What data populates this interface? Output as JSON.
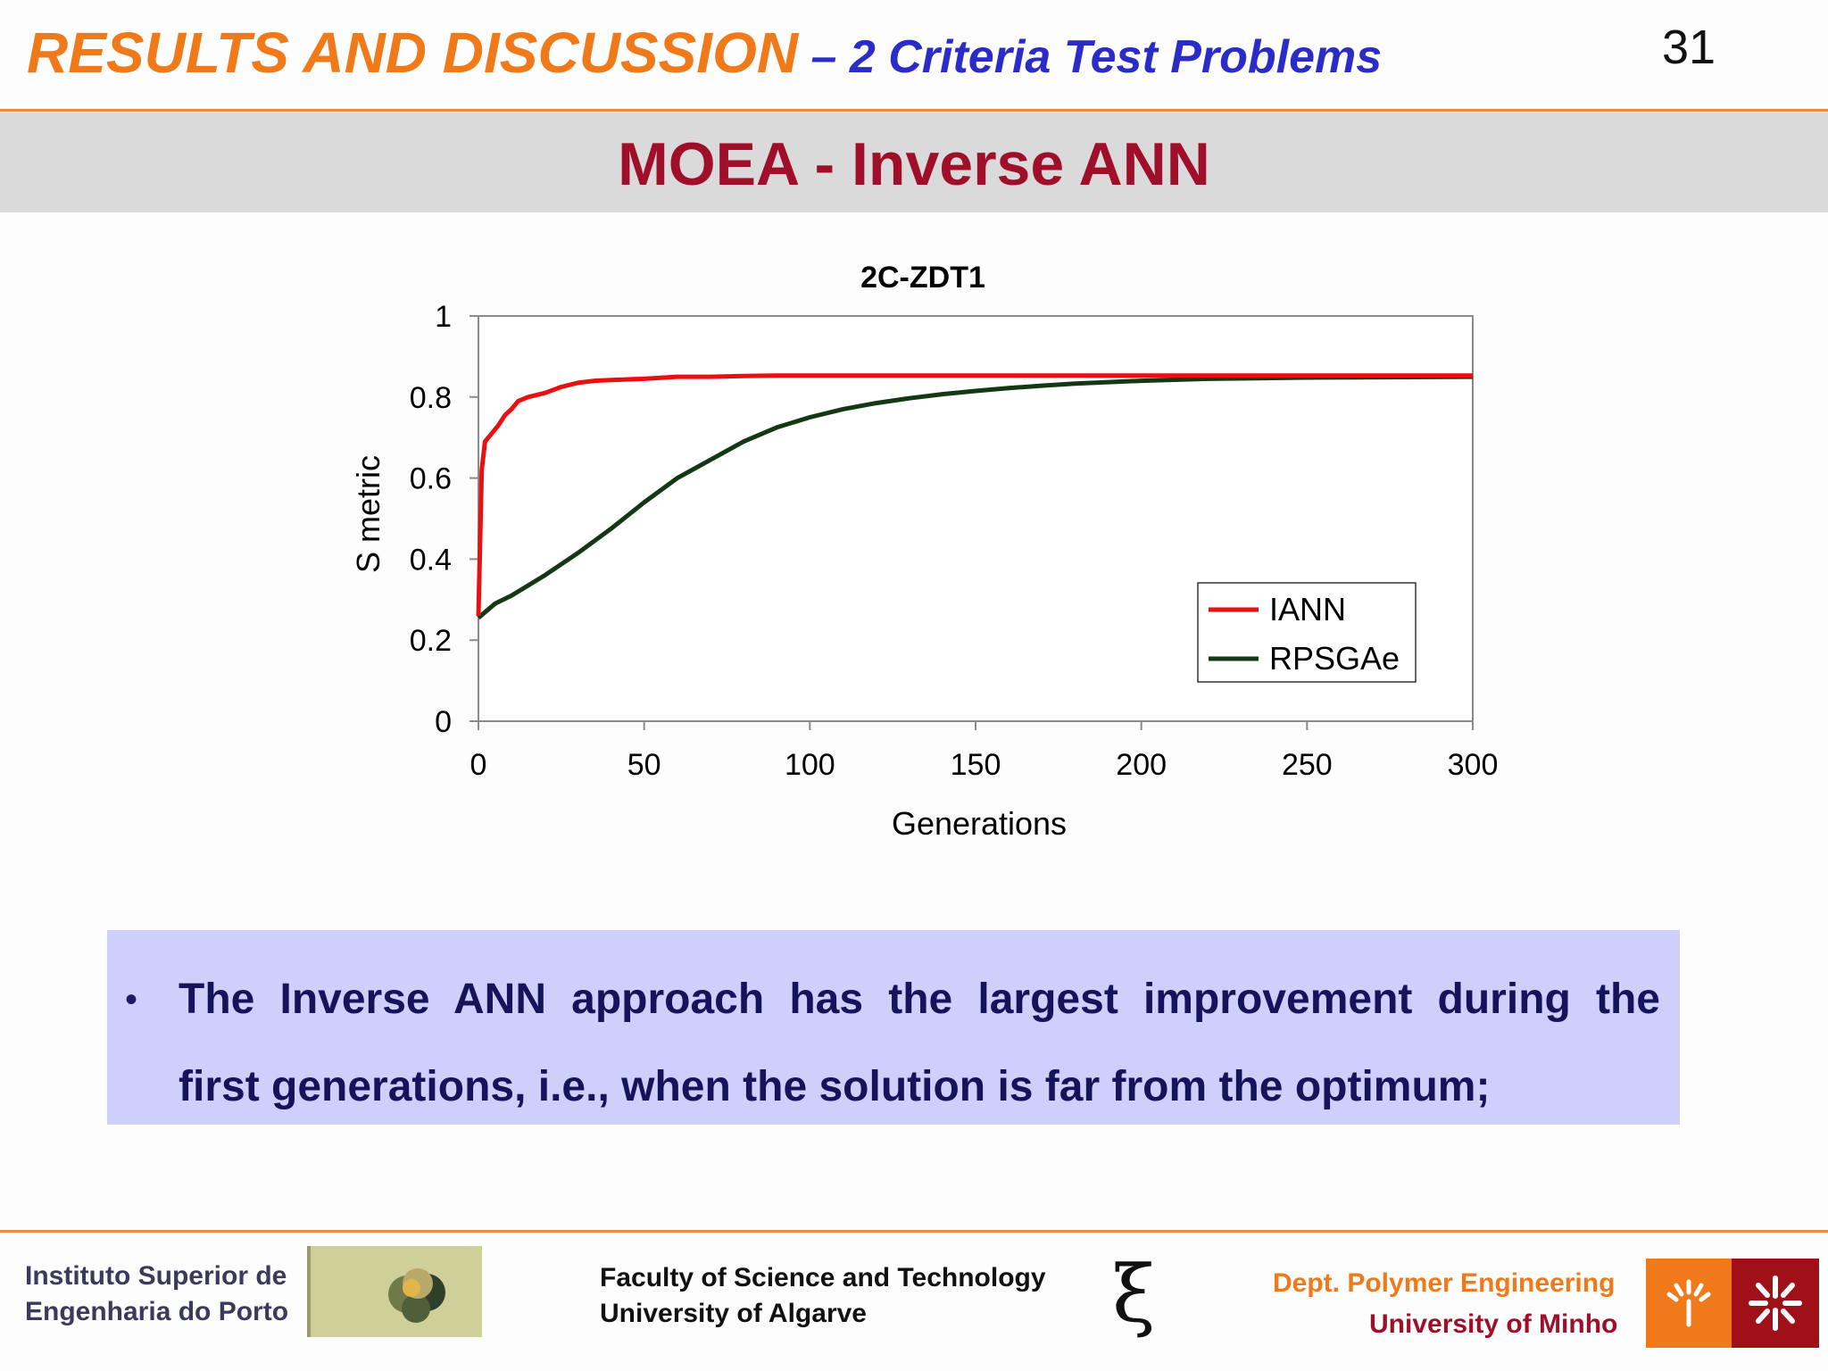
{
  "header": {
    "title_main": "RESULTS AND DISCUSSION",
    "title_sub": " – 2 Criteria Test Problems",
    "slide_number": "31"
  },
  "section_title": "MOEA - Inverse ANN",
  "chart_data": {
    "type": "line",
    "title": "2C-ZDT1",
    "xlabel": "Generations",
    "ylabel": "S metric",
    "xlim": [
      0,
      300
    ],
    "ylim": [
      0,
      1
    ],
    "xticks": [
      "0",
      "50",
      "100",
      "150",
      "200",
      "250",
      "300"
    ],
    "yticks": [
      "0",
      "0.2",
      "0.4",
      "0.6",
      "0.8",
      "1"
    ],
    "grid": false,
    "legend_position": "bottom-right",
    "series": [
      {
        "name": "IANN",
        "color": "#e81010",
        "x": [
          0,
          1,
          2,
          4,
          6,
          8,
          10,
          12,
          15,
          20,
          25,
          30,
          35,
          40,
          50,
          60,
          70,
          80,
          90,
          100,
          150,
          200,
          250,
          300
        ],
        "y": [
          0.26,
          0.62,
          0.69,
          0.71,
          0.73,
          0.755,
          0.77,
          0.79,
          0.8,
          0.81,
          0.825,
          0.835,
          0.84,
          0.842,
          0.845,
          0.85,
          0.85,
          0.852,
          0.853,
          0.853,
          0.853,
          0.853,
          0.853,
          0.853
        ]
      },
      {
        "name": "RPSGAe",
        "color": "#143814",
        "x": [
          0,
          5,
          10,
          20,
          30,
          40,
          50,
          60,
          70,
          80,
          90,
          100,
          110,
          120,
          130,
          140,
          150,
          160,
          170,
          180,
          200,
          220,
          250,
          300
        ],
        "y": [
          0.255,
          0.29,
          0.31,
          0.36,
          0.415,
          0.475,
          0.54,
          0.6,
          0.645,
          0.69,
          0.725,
          0.75,
          0.77,
          0.785,
          0.797,
          0.807,
          0.815,
          0.822,
          0.828,
          0.833,
          0.84,
          0.845,
          0.848,
          0.85
        ]
      }
    ]
  },
  "callout": {
    "bullet": "•",
    "line1": "The Inverse ANN approach has the largest improvement during the",
    "line2": "first generations, i.e., when the solution is far from the optimum;"
  },
  "footer": {
    "isep_line1": "Instituto Superior de",
    "isep_line2": "Engenharia do Porto",
    "fct_line1": "Faculty of Science and Technology",
    "fct_line2": "University of Algarve",
    "xi_symbol": "ξ",
    "dpe_line1": "Dept. Polymer Engineering",
    "dpe_line2": "University of Minho"
  }
}
